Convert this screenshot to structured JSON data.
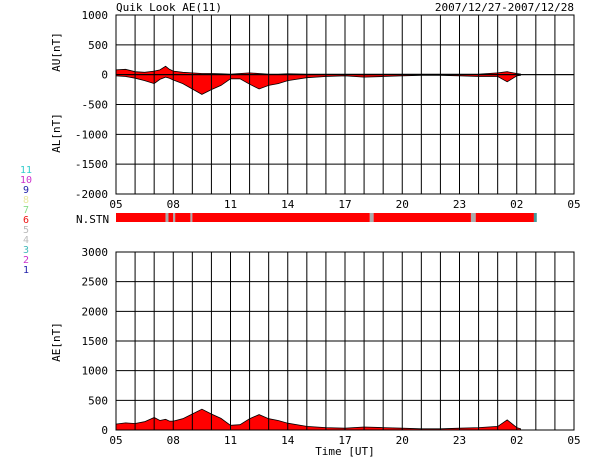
{
  "header": {
    "title": "Quik Look AE(11)",
    "date_range": "2007/12/27-2007/12/28"
  },
  "station_legend": [
    {
      "n": "11",
      "color": "#33cccc"
    },
    {
      "n": "10",
      "color": "#cc33cc"
    },
    {
      "n": "9",
      "color": "#2222aa"
    },
    {
      "n": "8",
      "color": "#e8e8a0"
    },
    {
      "n": "7",
      "color": "#88dd88"
    },
    {
      "n": "6",
      "color": "#ee1111"
    },
    {
      "n": "5",
      "color": "#bbbbbb"
    },
    {
      "n": "4",
      "color": "#bbbbbb"
    },
    {
      "n": "3",
      "color": "#44bbbb"
    },
    {
      "n": "2",
      "color": "#cc33cc"
    },
    {
      "n": "1",
      "color": "#2222aa"
    }
  ],
  "nstn_label": "N.STN",
  "colors": {
    "fill": "#ff0000",
    "gap": "#aaaaaa",
    "teal": "#449999"
  },
  "chart_data": [
    {
      "type": "area",
      "panel": "AU/AL",
      "ylabel_top": "AU[nT]",
      "ylabel_bottom": "AL[nT]",
      "ylim": [
        -2000,
        1000
      ],
      "yticks": [
        1000,
        500,
        0,
        -500,
        -1000,
        -1500,
        -2000
      ],
      "xlim": [
        5,
        29
      ],
      "xtick_labels": [
        "05",
        "08",
        "11",
        "14",
        "17",
        "20",
        "23",
        "02",
        "05"
      ],
      "grid": true,
      "au": {
        "x": [
          5.0,
          5.5,
          6.0,
          6.5,
          7.0,
          7.3,
          7.6,
          7.8,
          8.0,
          8.5,
          9.0,
          9.5,
          10.0,
          10.5,
          11.0,
          11.5,
          12.0,
          12.5,
          13.0,
          13.5,
          14.0,
          15.0,
          16.0,
          17.0,
          18.0,
          19.0,
          20.0,
          21.0,
          22.0,
          23.0,
          24.0,
          25.0,
          25.5,
          26.0,
          26.2
        ],
        "y": [
          80,
          90,
          50,
          40,
          60,
          80,
          140,
          90,
          60,
          40,
          30,
          20,
          20,
          15,
          10,
          20,
          30,
          20,
          10,
          10,
          15,
          10,
          10,
          10,
          10,
          10,
          10,
          10,
          10,
          10,
          10,
          30,
          50,
          20,
          10
        ]
      },
      "al": {
        "x": [
          5.0,
          5.5,
          6.0,
          6.5,
          7.0,
          7.3,
          7.6,
          7.8,
          8.0,
          8.5,
          9.0,
          9.5,
          10.0,
          10.5,
          11.0,
          11.5,
          12.0,
          12.5,
          13.0,
          13.5,
          14.0,
          15.0,
          16.0,
          17.0,
          18.0,
          19.0,
          20.0,
          21.0,
          22.0,
          23.0,
          24.0,
          25.0,
          25.5,
          26.0,
          26.2
        ],
        "y": [
          -20,
          -30,
          -60,
          -100,
          -150,
          -80,
          -40,
          -60,
          -90,
          -150,
          -240,
          -330,
          -250,
          -180,
          -70,
          -70,
          -160,
          -240,
          -180,
          -150,
          -100,
          -50,
          -30,
          -20,
          -40,
          -30,
          -20,
          -10,
          -10,
          -20,
          -30,
          -30,
          -120,
          -20,
          -10
        ]
      }
    },
    {
      "type": "area",
      "panel": "AE",
      "ylabel": "AE[nT]",
      "xlabel": "Time [UT]",
      "ylim": [
        0,
        3000
      ],
      "yticks": [
        3000,
        2500,
        2000,
        1500,
        1000,
        500,
        0
      ],
      "xlim": [
        5,
        29
      ],
      "xtick_labels": [
        "05",
        "08",
        "11",
        "14",
        "17",
        "20",
        "23",
        "02",
        "05"
      ],
      "grid": true,
      "series": [
        {
          "x": [
            5.0,
            5.5,
            6.0,
            6.5,
            7.0,
            7.3,
            7.6,
            7.8,
            8.0,
            8.5,
            9.0,
            9.5,
            10.0,
            10.5,
            11.0,
            11.5,
            12.0,
            12.5,
            13.0,
            13.5,
            14.0,
            15.0,
            16.0,
            17.0,
            18.0,
            19.0,
            20.0,
            21.0,
            22.0,
            23.0,
            24.0,
            25.0,
            25.5,
            26.0,
            26.2
          ],
          "y": [
            100,
            120,
            110,
            140,
            210,
            160,
            180,
            150,
            150,
            190,
            270,
            350,
            270,
            195,
            80,
            90,
            190,
            260,
            190,
            160,
            115,
            60,
            40,
            30,
            50,
            40,
            30,
            20,
            20,
            30,
            40,
            60,
            170,
            40,
            20
          ]
        }
      ]
    }
  ],
  "nstn_bar": [
    {
      "from": 5.0,
      "to": 7.6,
      "c": "fill"
    },
    {
      "from": 7.6,
      "to": 7.75,
      "c": "gap"
    },
    {
      "from": 7.75,
      "to": 8.0,
      "c": "fill"
    },
    {
      "from": 8.0,
      "to": 8.1,
      "c": "gap"
    },
    {
      "from": 8.1,
      "to": 8.9,
      "c": "fill"
    },
    {
      "from": 8.9,
      "to": 9.0,
      "c": "gap"
    },
    {
      "from": 9.0,
      "to": 18.3,
      "c": "fill"
    },
    {
      "from": 18.3,
      "to": 18.5,
      "c": "gap"
    },
    {
      "from": 18.5,
      "to": 23.6,
      "c": "fill"
    },
    {
      "from": 23.6,
      "to": 23.85,
      "c": "gap"
    },
    {
      "from": 23.85,
      "to": 26.9,
      "c": "fill"
    },
    {
      "from": 26.9,
      "to": 27.05,
      "c": "teal"
    }
  ]
}
